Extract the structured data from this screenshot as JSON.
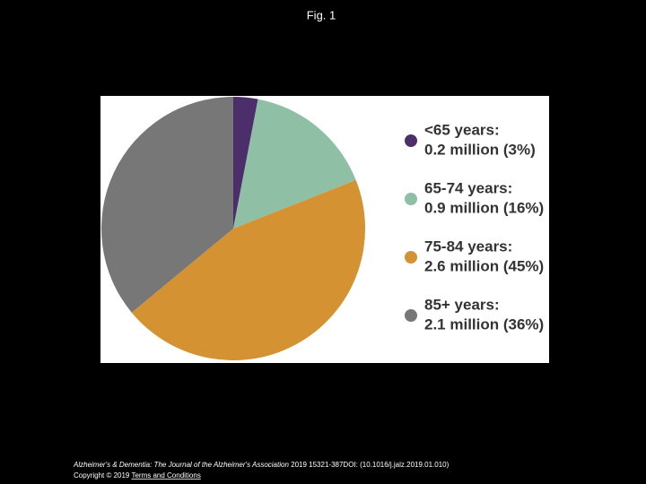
{
  "header": {
    "title": "Fig. 1"
  },
  "chart_data": {
    "type": "pie",
    "categories": [
      "<65 years:",
      "65-74 years:",
      "75-84 years:",
      "85+ years:"
    ],
    "values": [
      3,
      16,
      45,
      36
    ],
    "value_labels": [
      "0.2 million (3%)",
      "0.9 million (16%)",
      "2.6 million (45%)",
      "2.1 million (36%)"
    ],
    "colors": [
      "#4b2e6a",
      "#8fbfa4",
      "#d49232",
      "#777777"
    ]
  },
  "footer": {
    "journal": "Alzheimer's & Dementia: The Journal of the Alzheimer's Association",
    "details": "2019 15321-387DOI: (10.1016/j.jalz.2019.01.010)",
    "copyright": "Copyright © 2019",
    "link": "Terms and Conditions"
  }
}
